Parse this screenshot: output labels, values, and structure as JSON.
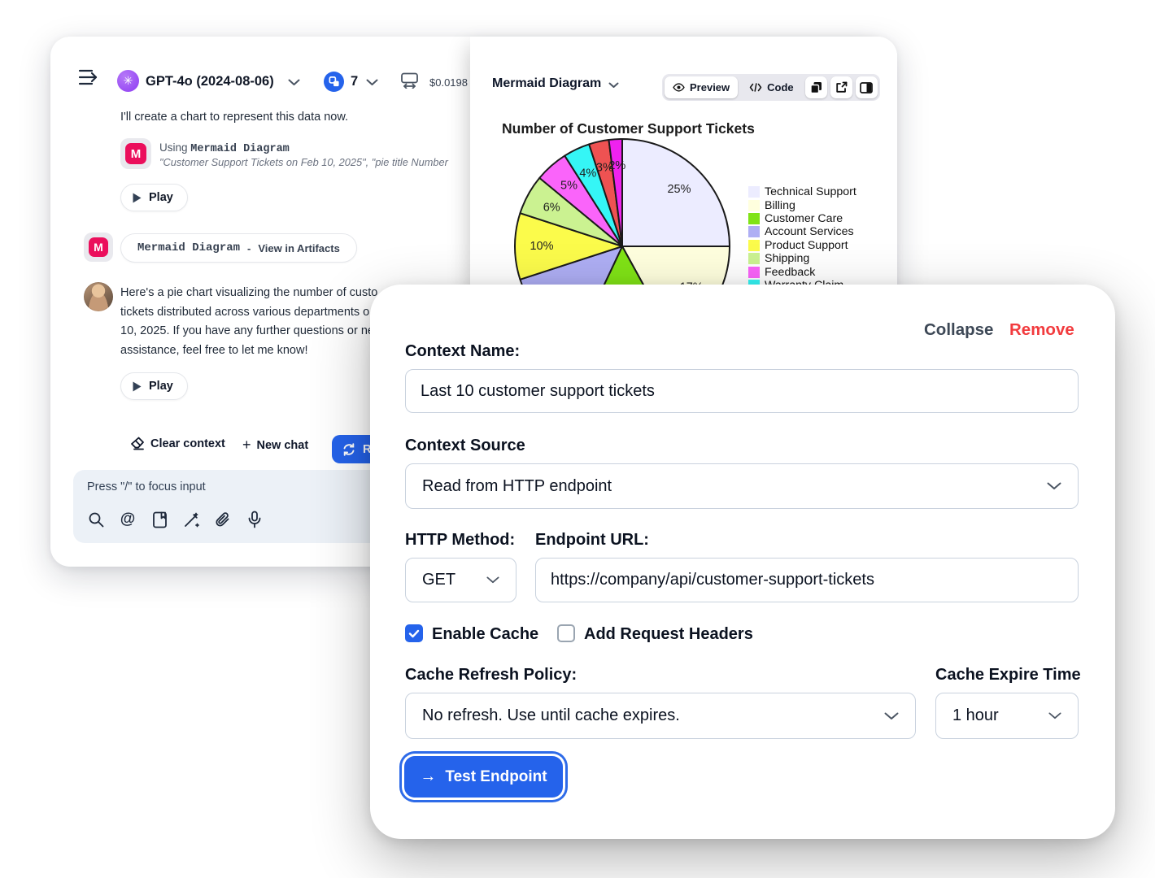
{
  "colors": {
    "accent_blue": "#2563EB",
    "remove_red": "#F23B3E",
    "mermaid_pink": "#EB0F5C",
    "input_bg": "#ECF1F7"
  },
  "icons": {
    "mermaid_glyph": "M",
    "openai_glyph": "✳",
    "plus": "+",
    "test_arrow": "→",
    "names": [
      "sidebar-toggle",
      "openai-logo",
      "blocks-badge",
      "resize-window",
      "eraser",
      "refresh",
      "magnifier",
      "at-sign",
      "notebook",
      "magic-wand",
      "paperclip",
      "microphone",
      "eye",
      "code-brackets",
      "copy",
      "external-link",
      "split-panel",
      "play-triangle",
      "chevron-down",
      "checkmark"
    ]
  },
  "chat": {
    "header": {
      "model": "GPT-4o (2024-08-06)",
      "badge_count": "7",
      "cost": "$0.0198 ("
    },
    "messages": {
      "intro": "I'll create a chart to represent this data now.",
      "tool_using_prefix": "Using ",
      "tool_name": "Mermaid Diagram",
      "tool_args": "\"Customer Support Tickets on Feb 10, 2025\", \"pie title Number",
      "play_label": "Play",
      "artifact_link_tool": "Mermaid Diagram",
      "artifact_link_sep": "-",
      "artifact_link_action": "View in Artifacts",
      "reply_lines": [
        "Here's a pie chart visualizing the number of custo",
        "tickets distributed across various departments o",
        "10, 2025. If you have any further questions or ne",
        "assistance, feel free to let me know!"
      ]
    },
    "footer": {
      "clear_context": "Clear context",
      "new_chat": "New chat",
      "regenerate_visible": "Re"
    },
    "input": {
      "placeholder": "Press \"/\" to focus input"
    }
  },
  "artifact": {
    "title": "Mermaid Diagram",
    "tabs": {
      "preview": "Preview",
      "code": "Code"
    }
  },
  "chart_data": {
    "type": "pie",
    "title": "Number of Customer Support Tickets",
    "label_format": "percent",
    "legend_position": "right",
    "legend_visible_rows": 8,
    "stroke_color": "#1a1a1a",
    "slices": [
      {
        "label": "Technical Support",
        "value": 25,
        "color": "#ECECFF"
      },
      {
        "label": "Billing",
        "value": 17,
        "color": "#FFFFDE"
      },
      {
        "label": "Customer Care",
        "value": 15,
        "color": "#80E316"
      },
      {
        "label": "Account Services",
        "value": 13,
        "color": "#AEAEF4"
      },
      {
        "label": "Product Support",
        "value": 10,
        "color": "#FBFB4B"
      },
      {
        "label": "Shipping",
        "value": 6,
        "color": "#CBF291"
      },
      {
        "label": "Feedback",
        "value": 5,
        "color": "#FA64FA"
      },
      {
        "label": "Warranty Claim",
        "value": 4,
        "color": "#35F6F6"
      },
      {
        "label": "",
        "value": 3,
        "color": "#EE5252"
      },
      {
        "label": "",
        "value": 2,
        "color": "#EF22EF"
      }
    ]
  },
  "modal": {
    "collapse": "Collapse",
    "remove": "Remove",
    "context_name": {
      "label": "Context Name:",
      "value": "Last 10 customer support tickets"
    },
    "context_source": {
      "label": "Context Source",
      "value": "Read from HTTP endpoint"
    },
    "http_method": {
      "label": "HTTP Method:",
      "value": "GET"
    },
    "endpoint_url": {
      "label": "Endpoint URL:",
      "value": "https://company/api/customer-support-tickets"
    },
    "enable_cache": {
      "label": "Enable Cache",
      "checked": true
    },
    "add_headers": {
      "label": "Add Request Headers",
      "checked": false
    },
    "cache_policy": {
      "label": "Cache Refresh Policy:",
      "value": "No refresh. Use until cache expires."
    },
    "cache_expire": {
      "label": "Cache Expire Time",
      "value": "1 hour"
    },
    "test_button": "Test Endpoint"
  }
}
